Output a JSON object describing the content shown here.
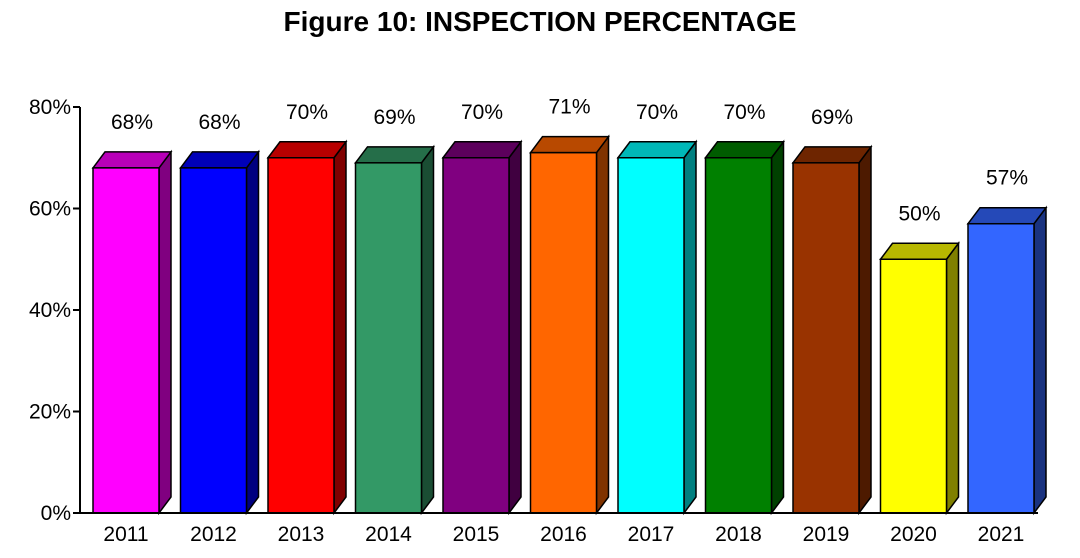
{
  "chart_data": {
    "type": "bar",
    "title": "Figure 10: INSPECTION PERCENTAGE",
    "xlabel": "",
    "ylabel": "",
    "ylim": [
      0,
      80
    ],
    "y_ticks": [
      "0%",
      "20%",
      "40%",
      "60%",
      "80%"
    ],
    "y_tick_values": [
      0,
      20,
      40,
      60,
      80
    ],
    "categories": [
      "2011",
      "2012",
      "2013",
      "2014",
      "2015",
      "2016",
      "2017",
      "2018",
      "2019",
      "2020",
      "2021"
    ],
    "values": [
      68,
      68,
      70,
      69,
      70,
      71,
      70,
      70,
      69,
      50,
      57
    ],
    "data_labels": [
      "68%",
      "68%",
      "70%",
      "69%",
      "70%",
      "71%",
      "70%",
      "70%",
      "69%",
      "50%",
      "57%"
    ],
    "colors": [
      "#ff00ff",
      "#0000ff",
      "#ff0000",
      "#339966",
      "#800080",
      "#ff6600",
      "#00ffff",
      "#008000",
      "#993300",
      "#ffff00",
      "#3366ff"
    ],
    "grid": false,
    "legend": "none",
    "style": "3d"
  }
}
